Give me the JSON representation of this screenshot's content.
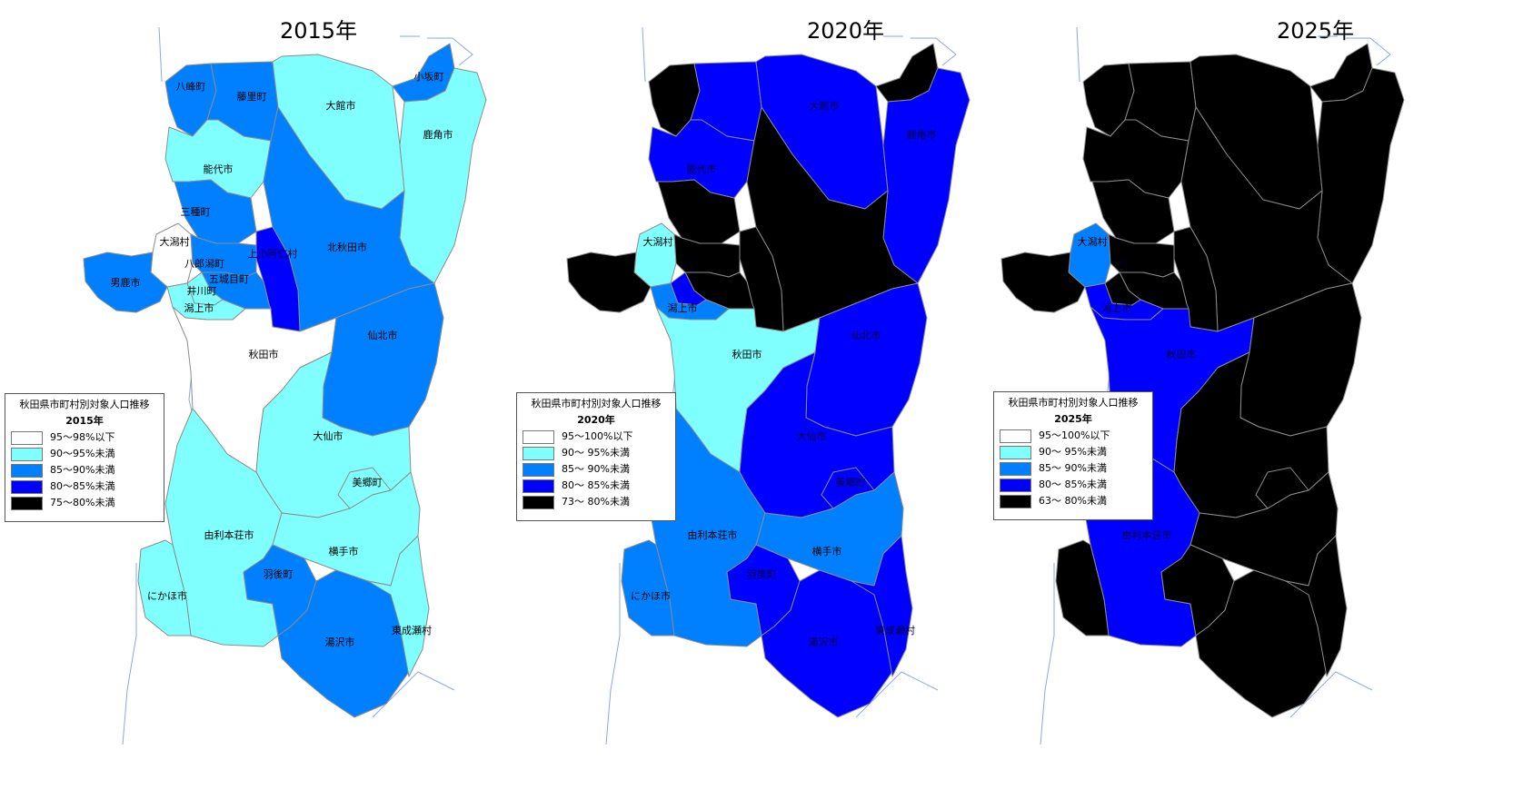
{
  "palette": {
    "c95": "#ffffff",
    "c90": "#80ffff",
    "c85": "#0080ff",
    "c80": "#0000ff",
    "c75": "#000000",
    "coast": "#8ca6e6",
    "border": "#8c8c8c"
  },
  "maps": [
    {
      "year_title": "2015年",
      "legend": {
        "title": "秋田県市町村別対象人口推移",
        "year": "2015年",
        "items": [
          {
            "label": "95～98%以下",
            "color": "#ffffff"
          },
          {
            "label": "90～95%未満",
            "color": "#80ffff"
          },
          {
            "label": "85～90%未満",
            "color": "#0080ff"
          },
          {
            "label": "80～85%未満",
            "color": "#0000ff"
          },
          {
            "label": "75～80%未満",
            "color": "#000000"
          }
        ]
      },
      "regions": {
        "happo": "c85",
        "fujisato": "c85",
        "odate": "c90",
        "kosaka": "c85",
        "kazuno": "c90",
        "noshiro": "c90",
        "mitane": "c85",
        "ogata": "c95",
        "kitaakita": "c85",
        "kamikoani": "c80",
        "hachirogata": "c85",
        "gojome": "c85",
        "oga": "c85",
        "ikawa": "c90",
        "katagami": "c90",
        "akita": "c95",
        "semboku": "c85",
        "daisen": "c90",
        "misato": "c90",
        "yurihonjo": "c90",
        "yokote": "c90",
        "nikaho": "c90",
        "ugo": "c85",
        "yuzawa": "c85",
        "higashinaruse": "c90"
      },
      "labels": {
        "happo": "八峰町",
        "fujisato": "藤里町",
        "odate": "大館市",
        "kosaka": "小坂町",
        "kazuno": "鹿角市",
        "noshiro": "能代市",
        "mitane": "三種町",
        "ogata": "大潟村",
        "kitaakita": "北秋田市",
        "kamikoani": "上小阿仁村",
        "hachirogata": "八郎潟町",
        "gojome": "五城目町",
        "oga": "男鹿市",
        "ikawa": "井川町",
        "katagami": "潟上市",
        "akita": "秋田市",
        "semboku": "仙北市",
        "daisen": "大仙市",
        "misato": "美郷町",
        "yurihonjo": "由利本荘市",
        "yokote": "横手市",
        "nikaho": "にかほ市",
        "ugo": "羽後町",
        "yuzawa": "湯沢市",
        "higashinaruse": "東成瀬村"
      }
    },
    {
      "year_title": "2020年",
      "legend": {
        "title": "秋田県市町村別対象人口推移",
        "year": "2020年",
        "items": [
          {
            "label": "95～100%以下",
            "color": "#ffffff"
          },
          {
            "label": "90～ 95%未満",
            "color": "#80ffff"
          },
          {
            "label": "85～ 90%未満",
            "color": "#0080ff"
          },
          {
            "label": "80～ 85%未満",
            "color": "#0000ff"
          },
          {
            "label": "73～ 80%未満",
            "color": "#000000"
          }
        ]
      },
      "regions": {
        "happo": "c75",
        "fujisato": "c80",
        "odate": "c80",
        "kosaka": "c75",
        "kazuno": "c80",
        "noshiro": "c80",
        "mitane": "c75",
        "ogata": "c90",
        "kitaakita": "c75",
        "kamikoani": "c75",
        "hachirogata": "c75",
        "gojome": "c75",
        "oga": "c75",
        "ikawa": "c80",
        "katagami": "c85",
        "akita": "c90",
        "semboku": "c80",
        "daisen": "c80",
        "misato": "c80",
        "yurihonjo": "c85",
        "yokote": "c85",
        "nikaho": "c85",
        "ugo": "c80",
        "yuzawa": "c80",
        "higashinaruse": "c80"
      },
      "labels": {
        "odate": "大館市",
        "kazuno": "鹿角市",
        "noshiro": "能代市",
        "ogata": "大潟村",
        "hachirogata": "八",
        "katagami": "潟上市",
        "akita": "秋田市",
        "semboku": "仙北市",
        "daisen": "大仙市",
        "misato": "美郷町",
        "yurihonjo": "由利本荘市",
        "yokote": "横手市",
        "nikaho": "にかほ市",
        "ugo": "羽後町",
        "yuzawa": "湯沢市",
        "higashinaruse": "東成瀬村"
      }
    },
    {
      "year_title": "2025年",
      "legend": {
        "title": "秋田県市町村別対象人口推移",
        "year": "2025年",
        "items": [
          {
            "label": "95～100%以下",
            "color": "#ffffff"
          },
          {
            "label": "90～ 95%未満",
            "color": "#80ffff"
          },
          {
            "label": "85～ 90%未満",
            "color": "#0080ff"
          },
          {
            "label": "80～ 85%未満",
            "color": "#0000ff"
          },
          {
            "label": "63～ 80%未満",
            "color": "#000000"
          }
        ]
      },
      "regions": {
        "happo": "c75",
        "fujisato": "c75",
        "odate": "c75",
        "kosaka": "c75",
        "kazuno": "c75",
        "noshiro": "c75",
        "mitane": "c75",
        "ogata": "c85",
        "kitaakita": "c75",
        "kamikoani": "c75",
        "hachirogata": "c75",
        "gojome": "c75",
        "oga": "c75",
        "ikawa": "c75",
        "katagami": "c80",
        "akita": "c80",
        "semboku": "c75",
        "daisen": "c75",
        "misato": "c75",
        "yurihonjo": "c80",
        "yokote": "c75",
        "nikaho": "c75",
        "ugo": "c75",
        "yuzawa": "c75",
        "higashinaruse": "c75"
      },
      "labels": {
        "ogata": "大潟村",
        "hachirogata": "八",
        "katagami": "潟上市",
        "akita": "秋田市",
        "yurihonjo": "由利本荘市"
      }
    }
  ]
}
